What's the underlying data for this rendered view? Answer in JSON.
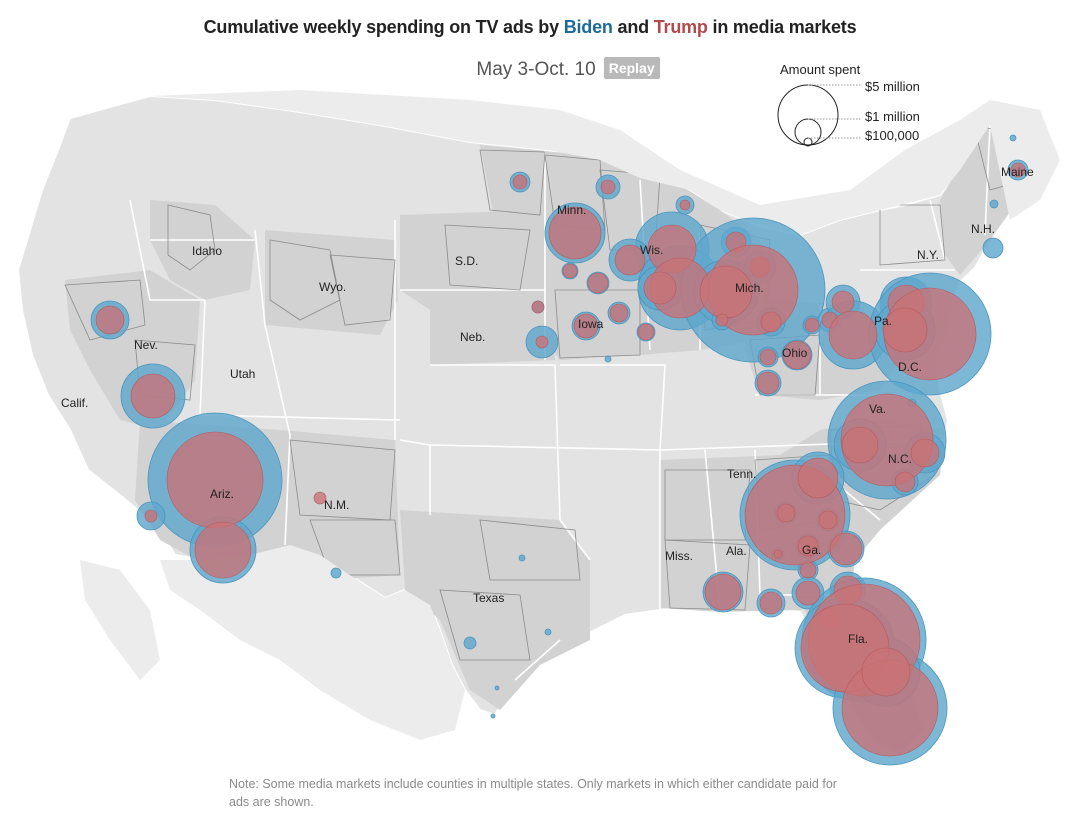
{
  "title": {
    "prefix": "Cumulative weekly spending on TV ads by ",
    "biden": "Biden",
    "and": " and ",
    "trump": "Trump",
    "suffix": " in media markets"
  },
  "date_range": "May 3-Oct. 10",
  "replay_label": "Replay",
  "legend": {
    "title": "Amount spent",
    "labels": [
      "$5 million",
      "$1 million",
      "$100,000"
    ]
  },
  "colors": {
    "biden": "#5fa7cd",
    "trump": "#c97276",
    "land": "#e3e3e3",
    "shaded": "#d2d2d2",
    "border": "#ffffff",
    "county": "#8b8b8b"
  },
  "state_labels": [
    "Idaho",
    "Wyo.",
    "S.D.",
    "Minn.",
    "Wis.",
    "Mich.",
    "N.Y.",
    "Maine",
    "N.H.",
    "Nev.",
    "Utah",
    "Calif.",
    "Neb.",
    "Iowa",
    "Pa.",
    "Ohio",
    "D.C.",
    "Va.",
    "N.C.",
    "Tenn.",
    "Ariz.",
    "N.M.",
    "Texas",
    "Miss.",
    "Ala.",
    "Ga.",
    "Fla."
  ],
  "note": "Note: Some media markets include counties in multiple states. Only markets in which either candidate paid for ads are shown."
}
